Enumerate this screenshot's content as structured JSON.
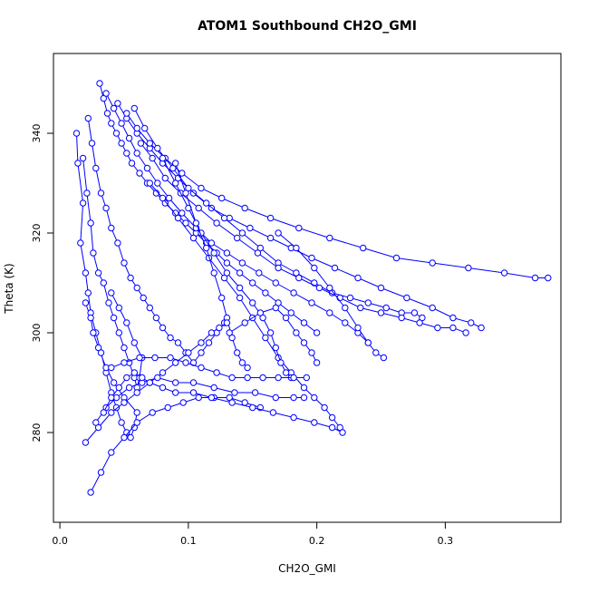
{
  "chart_data": {
    "type": "line",
    "title": "ATOM1 Southbound CH2O_GMI",
    "xlabel": "CH2O_GMI",
    "ylabel": "Theta (K)",
    "xlim": [
      -0.005,
      0.39
    ],
    "ylim": [
      262,
      356
    ],
    "x_ticks": [
      0.0,
      0.1,
      0.2,
      0.3
    ],
    "x_tick_labels": [
      "0.0",
      "0.1",
      "0.2",
      "0.3"
    ],
    "y_ticks": [
      280,
      300,
      320,
      340
    ],
    "y_tick_labels": [
      "280",
      "300",
      "320",
      "340"
    ],
    "grid": false,
    "legend": "none",
    "series_color": "#0000ff",
    "marker": "open-circle",
    "series": [
      {
        "x": [
          0.013,
          0.014,
          0.018,
          0.016,
          0.02,
          0.022,
          0.024,
          0.028,
          0.032,
          0.036,
          0.04,
          0.044,
          0.048,
          0.052,
          0.055,
          0.058,
          0.06,
          0.05,
          0.042,
          0.036,
          0.03,
          0.026,
          0.024,
          0.02
        ],
        "y": [
          340,
          334,
          326,
          318,
          312,
          308,
          304,
          300,
          296,
          292,
          288,
          285,
          282,
          280,
          279,
          281,
          284,
          287,
          290,
          293,
          297,
          300,
          303,
          306
        ]
      },
      {
        "x": [
          0.018,
          0.021,
          0.024,
          0.026,
          0.03,
          0.034,
          0.038,
          0.042,
          0.046,
          0.05,
          0.054,
          0.058,
          0.06,
          0.062,
          0.064,
          0.058,
          0.052,
          0.046,
          0.04
        ],
        "y": [
          335,
          328,
          322,
          316,
          312,
          310,
          306,
          303,
          300,
          297,
          294,
          291,
          289,
          291,
          295,
          298,
          302,
          305,
          308
        ]
      },
      {
        "x": [
          0.022,
          0.025,
          0.028,
          0.032,
          0.036,
          0.04,
          0.045,
          0.05,
          0.055,
          0.06,
          0.065,
          0.07,
          0.075,
          0.08,
          0.086,
          0.092,
          0.098,
          0.104,
          0.11,
          0.116,
          0.122,
          0.128
        ],
        "y": [
          343,
          338,
          333,
          328,
          325,
          321,
          318,
          314,
          311,
          309,
          307,
          305,
          303,
          301,
          299,
          298,
          296,
          294,
          296,
          298,
          300,
          302
        ]
      },
      {
        "x": [
          0.031,
          0.034,
          0.037,
          0.04,
          0.044,
          0.048,
          0.052,
          0.056,
          0.062,
          0.068,
          0.075,
          0.082,
          0.09,
          0.098,
          0.106,
          0.114,
          0.122,
          0.13,
          0.14,
          0.15,
          0.16,
          0.17,
          0.18,
          0.19,
          0.2
        ],
        "y": [
          350,
          347,
          344,
          342,
          340,
          338,
          336,
          334,
          332,
          330,
          328,
          326,
          324,
          322,
          320,
          318,
          316,
          314,
          312,
          310,
          308,
          306,
          304,
          302,
          300
        ]
      },
      {
        "x": [
          0.036,
          0.042,
          0.048,
          0.054,
          0.06,
          0.068,
          0.076,
          0.085,
          0.095,
          0.106,
          0.118,
          0.13,
          0.142,
          0.155,
          0.168,
          0.182,
          0.196,
          0.21,
          0.222,
          0.232,
          0.24
        ],
        "y": [
          348,
          345,
          342,
          339,
          336,
          333,
          330,
          327,
          324,
          321,
          318,
          316,
          314,
          312,
          310,
          308,
          306,
          304,
          302,
          300,
          298
        ]
      },
      {
        "x": [
          0.045,
          0.052,
          0.06,
          0.07,
          0.08,
          0.092,
          0.104,
          0.118,
          0.132,
          0.148,
          0.164,
          0.18,
          0.196,
          0.214,
          0.232,
          0.25,
          0.27,
          0.29,
          0.306,
          0.32,
          0.328
        ],
        "y": [
          346,
          343,
          340,
          337,
          334,
          331,
          328,
          325,
          323,
          321,
          319,
          317,
          315,
          313,
          311,
          309,
          307,
          305,
          303,
          302,
          301
        ]
      },
      {
        "x": [
          0.052,
          0.06,
          0.07,
          0.082,
          0.095,
          0.11,
          0.126,
          0.144,
          0.164,
          0.186,
          0.21,
          0.236,
          0.262,
          0.29,
          0.318,
          0.346,
          0.37,
          0.38
        ],
        "y": [
          344,
          341,
          338,
          335,
          332,
          329,
          327,
          325,
          323,
          321,
          319,
          317,
          315,
          314,
          313,
          312,
          311,
          311
        ]
      },
      {
        "x": [
          0.058,
          0.066,
          0.076,
          0.088,
          0.1,
          0.114,
          0.128,
          0.142,
          0.156,
          0.17,
          0.184,
          0.198,
          0.212,
          0.226,
          0.24,
          0.254,
          0.266,
          0.276,
          0.282
        ],
        "y": [
          345,
          341,
          337,
          333,
          329,
          326,
          323,
          320,
          317,
          314,
          312,
          310,
          308,
          307,
          306,
          305,
          304,
          304,
          303
        ]
      },
      {
        "x": [
          0.063,
          0.072,
          0.082,
          0.094,
          0.108,
          0.122,
          0.138,
          0.154,
          0.17,
          0.186,
          0.202,
          0.218,
          0.234,
          0.25,
          0.266,
          0.28,
          0.294,
          0.306,
          0.316
        ],
        "y": [
          338,
          335,
          331,
          328,
          325,
          322,
          319,
          316,
          313,
          311,
          309,
          307,
          305,
          304,
          303,
          302,
          301,
          301,
          300
        ]
      },
      {
        "x": [
          0.07,
          0.08,
          0.092,
          0.104,
          0.116,
          0.128,
          0.14,
          0.15,
          0.16,
          0.17,
          0.18,
          0.19,
          0.198,
          0.206,
          0.212,
          0.218
        ],
        "y": [
          330,
          327,
          323,
          319,
          315,
          311,
          307,
          303,
          299,
          295,
          292,
          289,
          287,
          285,
          283,
          281
        ]
      },
      {
        "x": [
          0.08,
          0.09,
          0.1,
          0.11,
          0.12,
          0.13,
          0.14,
          0.15,
          0.158,
          0.164,
          0.168,
          0.172,
          0.176,
          0.18
        ],
        "y": [
          335,
          330,
          325,
          320,
          316,
          312,
          309,
          306,
          303,
          300,
          297,
          294,
          292,
          291
        ]
      },
      {
        "x": [
          0.09,
          0.098,
          0.106,
          0.114,
          0.12,
          0.126,
          0.13,
          0.134,
          0.138,
          0.142,
          0.146
        ],
        "y": [
          334,
          328,
          322,
          317,
          312,
          307,
          303,
          299,
          296,
          294,
          293
        ]
      },
      {
        "x": [
          0.02,
          0.03,
          0.04,
          0.05,
          0.06,
          0.07,
          0.08,
          0.09,
          0.1,
          0.11,
          0.118,
          0.124,
          0.13
        ],
        "y": [
          278,
          281,
          284,
          286,
          288,
          290,
          292,
          294,
          296,
          298,
          300,
          301,
          302
        ]
      },
      {
        "x": [
          0.024,
          0.032,
          0.04,
          0.05,
          0.06,
          0.072,
          0.084,
          0.096,
          0.108,
          0.12,
          0.132,
          0.144,
          0.156
        ],
        "y": [
          268,
          272,
          276,
          279,
          282,
          284,
          285,
          286,
          287,
          287,
          287,
          286,
          285
        ]
      },
      {
        "x": [
          0.028,
          0.036,
          0.044,
          0.054,
          0.064,
          0.076,
          0.09,
          0.104,
          0.12,
          0.136,
          0.152,
          0.168,
          0.182,
          0.19
        ],
        "y": [
          282,
          285,
          287,
          289,
          290,
          291,
          290,
          290,
          289,
          288,
          288,
          287,
          287,
          287
        ]
      },
      {
        "x": [
          0.034,
          0.04,
          0.046,
          0.052,
          0.058,
          0.064,
          0.07,
          0.08,
          0.09,
          0.104,
          0.118,
          0.134,
          0.15,
          0.166,
          0.182,
          0.198,
          0.212,
          0.22
        ],
        "y": [
          284,
          287,
          289,
          291,
          292,
          291,
          290,
          289,
          288,
          288,
          287,
          286,
          285,
          284,
          283,
          282,
          281,
          280
        ]
      },
      {
        "x": [
          0.04,
          0.05,
          0.062,
          0.074,
          0.086,
          0.098,
          0.11,
          0.122,
          0.134,
          0.146,
          0.158,
          0.17,
          0.182,
          0.192
        ],
        "y": [
          293,
          294,
          295,
          295,
          295,
          294,
          293,
          292,
          291,
          291,
          291,
          291,
          291,
          291
        ]
      },
      {
        "x": [
          0.132,
          0.144,
          0.156,
          0.168,
          0.176,
          0.184,
          0.19,
          0.196,
          0.2
        ],
        "y": [
          300,
          302,
          304,
          305,
          303,
          300,
          298,
          296,
          294
        ]
      },
      {
        "x": [
          0.17,
          0.184,
          0.198,
          0.21,
          0.222,
          0.232,
          0.24,
          0.246,
          0.252
        ],
        "y": [
          320,
          317,
          313,
          309,
          305,
          301,
          298,
          296,
          295
        ]
      }
    ]
  }
}
